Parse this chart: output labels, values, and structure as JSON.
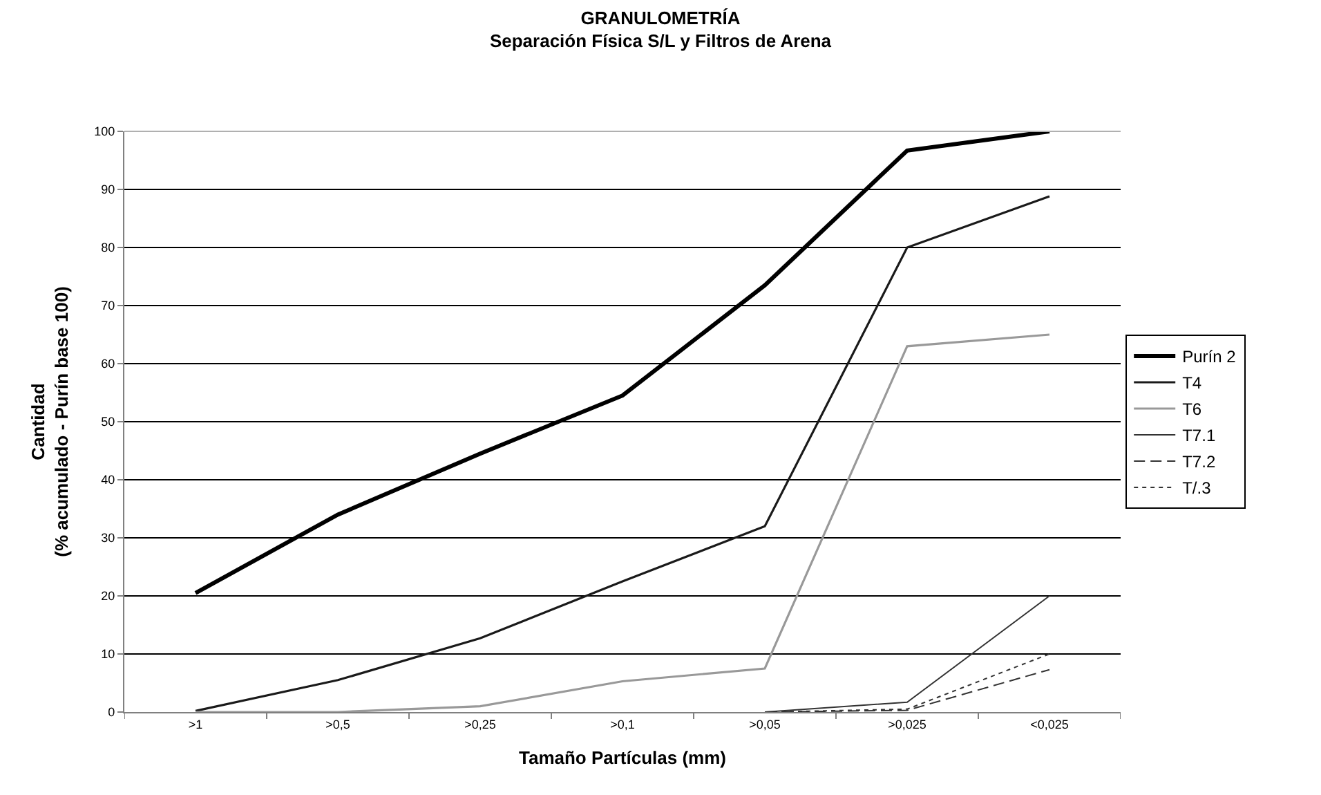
{
  "chart_data": {
    "type": "line",
    "title": "GRANULOMETRÍA",
    "subtitle": "Separación Física S/L y Filtros de Arena",
    "xlabel": "Tamaño Partículas (mm)",
    "ylabel": "Cantidad\n(% acumulado - Purín base 100)",
    "categories": [
      ">1",
      ">0,5",
      ">0,25",
      ">0,1",
      ">0,05",
      ">0,025",
      "<0,025"
    ],
    "series": [
      {
        "name": "Purín 2",
        "color": "#000000",
        "values": [
          20.5,
          34,
          44.5,
          54.5,
          73.5,
          96.7,
          100
        ]
      },
      {
        "name": "T4",
        "color": "#1a1a1a",
        "values": [
          0.2,
          5.5,
          12.7,
          22.5,
          32,
          80,
          88.8
        ]
      },
      {
        "name": "T6",
        "color": "#999999",
        "values": [
          0,
          0,
          1,
          5.3,
          7.5,
          63,
          65
        ]
      },
      {
        "name": "T7.1",
        "color": "#333333",
        "values": [
          null,
          null,
          null,
          null,
          0,
          1.7,
          20
        ]
      },
      {
        "name": "T7.2",
        "color": "#333333",
        "line_style": "dashed",
        "values": [
          null,
          null,
          null,
          null,
          0,
          0.3,
          7.3
        ]
      },
      {
        "name": "T/.3",
        "color": "#333333",
        "line_style": "dotted",
        "values": [
          null,
          null,
          null,
          null,
          0,
          0.5,
          10
        ]
      }
    ],
    "ylim": [
      0,
      100
    ],
    "yticks": [
      0,
      10,
      20,
      30,
      40,
      50,
      60,
      70,
      80,
      90,
      100
    ],
    "grid": "y",
    "legend": "right",
    "marker": "none",
    "line_style": "solid"
  }
}
